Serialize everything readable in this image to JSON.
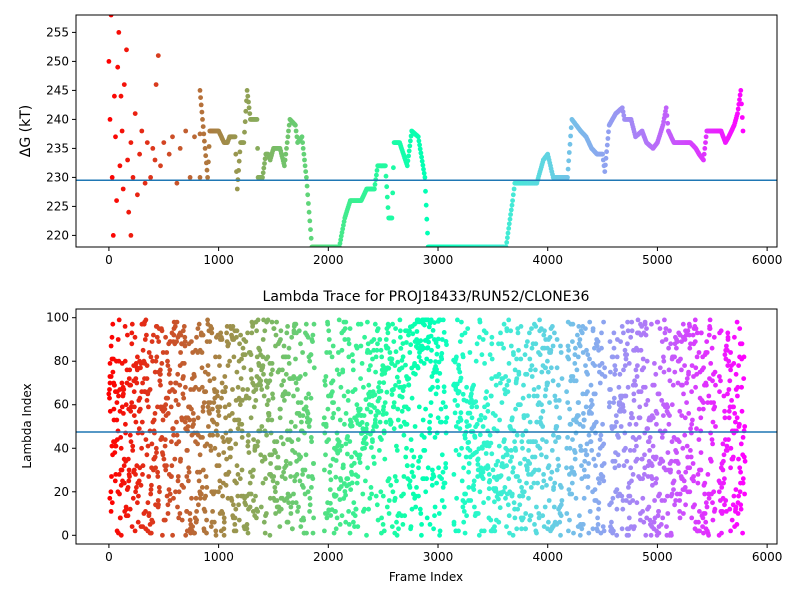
{
  "chart_data": [
    {
      "type": "scatter",
      "title": "",
      "xlabel": "",
      "ylabel": "ΔG (kT)",
      "xlim": [
        -300,
        6090
      ],
      "ylim": [
        218,
        258
      ],
      "xticks": [
        0,
        1000,
        2000,
        3000,
        4000,
        5000,
        6000
      ],
      "yticks": [
        220,
        225,
        230,
        235,
        240,
        245,
        250,
        255
      ],
      "xtick_labels": [
        "0",
        "1000",
        "2000",
        "3000",
        "4000",
        "5000",
        "6000"
      ],
      "ytick_labels": [
        "220",
        "225",
        "230",
        "235",
        "240",
        "245",
        "250",
        "255"
      ],
      "hline": 229.5,
      "hline_color": "#1f77b4",
      "colormap": "rainbow (reversed: red at frame 0 → violet at last frame)",
      "trace_points": [
        [
          830,
          230
        ],
        [
          830,
          245
        ],
        [
          900,
          230
        ],
        [
          920,
          238
        ],
        [
          1000,
          238
        ],
        [
          1050,
          236
        ],
        [
          1080,
          236
        ],
        [
          1100,
          237
        ],
        [
          1150,
          237
        ],
        [
          1170,
          228
        ],
        [
          1200,
          236
        ],
        [
          1230,
          236
        ],
        [
          1260,
          245
        ],
        [
          1290,
          240
        ],
        [
          1350,
          240
        ],
        [
          1360,
          230
        ],
        [
          1400,
          230
        ],
        [
          1430,
          234
        ],
        [
          1450,
          234
        ],
        [
          1470,
          233
        ],
        [
          1500,
          235
        ],
        [
          1560,
          235
        ],
        [
          1600,
          232
        ],
        [
          1650,
          240
        ],
        [
          1700,
          239
        ],
        [
          1720,
          236
        ],
        [
          1760,
          237
        ],
        [
          1800,
          230
        ],
        [
          1850,
          218
        ],
        [
          2100,
          218
        ],
        [
          2150,
          223
        ],
        [
          2200,
          226
        ],
        [
          2300,
          226
        ],
        [
          2350,
          228
        ],
        [
          2420,
          228
        ],
        [
          2450,
          232
        ],
        [
          2520,
          232
        ],
        [
          2550,
          223
        ],
        [
          2580,
          223
        ],
        [
          2600,
          236
        ],
        [
          2650,
          236
        ],
        [
          2720,
          232
        ],
        [
          2760,
          238
        ],
        [
          2820,
          237
        ],
        [
          2880,
          230
        ],
        [
          2910,
          218
        ],
        [
          3620,
          218
        ],
        [
          3680,
          226
        ],
        [
          3700,
          229
        ],
        [
          3900,
          229
        ],
        [
          3960,
          233
        ],
        [
          4000,
          234
        ],
        [
          4050,
          230
        ],
        [
          4180,
          230
        ],
        [
          4220,
          240
        ],
        [
          4300,
          238
        ],
        [
          4350,
          237
        ],
        [
          4400,
          235
        ],
        [
          4450,
          234
        ],
        [
          4500,
          234
        ],
        [
          4520,
          231
        ],
        [
          4560,
          239
        ],
        [
          4620,
          241
        ],
        [
          4680,
          242
        ],
        [
          4700,
          240
        ],
        [
          4760,
          240
        ],
        [
          4800,
          237
        ],
        [
          4860,
          238
        ],
        [
          4900,
          236
        ],
        [
          4960,
          235
        ],
        [
          5000,
          236
        ],
        [
          5050,
          239
        ],
        [
          5080,
          242
        ],
        [
          5100,
          238
        ],
        [
          5150,
          236
        ],
        [
          5300,
          236
        ],
        [
          5350,
          235
        ],
        [
          5380,
          234
        ],
        [
          5420,
          233
        ],
        [
          5450,
          238
        ],
        [
          5580,
          238
        ],
        [
          5620,
          236
        ],
        [
          5650,
          237
        ],
        [
          5700,
          239
        ],
        [
          5730,
          241
        ],
        [
          5760,
          245
        ],
        [
          5780,
          238
        ]
      ],
      "early_scatter_points": [
        [
          20,
          258
        ],
        [
          0,
          250
        ],
        [
          10,
          240
        ],
        [
          30,
          230
        ],
        [
          40,
          220
        ],
        [
          50,
          244
        ],
        [
          60,
          237
        ],
        [
          70,
          226
        ],
        [
          80,
          249
        ],
        [
          90,
          255
        ],
        [
          100,
          232
        ],
        [
          110,
          244
        ],
        [
          120,
          238
        ],
        [
          130,
          228
        ],
        [
          140,
          246
        ],
        [
          160,
          252
        ],
        [
          170,
          233
        ],
        [
          180,
          224
        ],
        [
          200,
          236
        ],
        [
          200,
          220
        ],
        [
          220,
          230
        ],
        [
          240,
          241
        ],
        [
          260,
          227
        ],
        [
          280,
          234
        ],
        [
          300,
          238
        ],
        [
          330,
          229
        ],
        [
          350,
          236
        ],
        [
          380,
          230
        ],
        [
          400,
          235
        ],
        [
          420,
          233
        ],
        [
          430,
          246
        ],
        [
          450,
          251
        ],
        [
          470,
          232
        ],
        [
          500,
          236
        ],
        [
          550,
          234
        ],
        [
          580,
          237
        ],
        [
          620,
          229
        ],
        [
          650,
          235
        ],
        [
          700,
          238
        ],
        [
          740,
          230
        ],
        [
          780,
          237
        ]
      ]
    },
    {
      "type": "scatter",
      "title": "Lambda Trace for PROJ18433/RUN52/CLONE36",
      "xlabel": "Frame Index",
      "ylabel": "Lambda Index",
      "xlim": [
        -300,
        6090
      ],
      "ylim": [
        -4,
        104
      ],
      "xticks": [
        0,
        1000,
        2000,
        3000,
        4000,
        5000,
        6000
      ],
      "yticks": [
        0,
        20,
        40,
        60,
        80,
        100
      ],
      "xtick_labels": [
        "0",
        "1000",
        "2000",
        "3000",
        "4000",
        "5000",
        "6000"
      ],
      "ytick_labels": [
        "0",
        "20",
        "40",
        "60",
        "80",
        "100"
      ],
      "hline": 47.5,
      "hline_color": "#1f77b4",
      "colormap": "rainbow (reversed: red at frame 0 → violet at last frame)",
      "frames": 5800,
      "lambda_range": [
        0,
        99
      ]
    }
  ]
}
